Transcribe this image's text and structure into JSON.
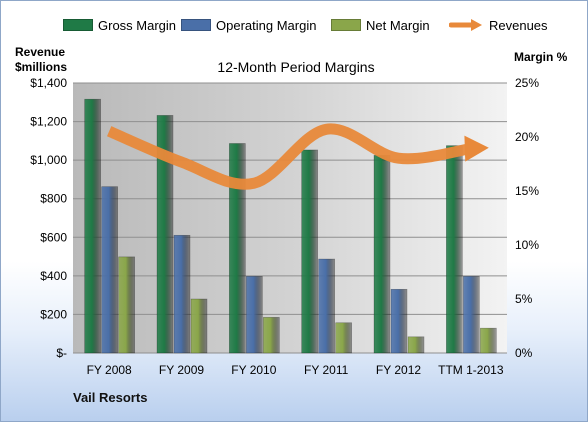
{
  "legend": [
    {
      "label": "Gross Margin",
      "color": "#1f7a46"
    },
    {
      "label": "Operating Margin",
      "color": "#4a6fa8"
    },
    {
      "label": "Net Margin",
      "color": "#8aa64a"
    },
    {
      "label": "Revenues",
      "color": "#e8893a"
    }
  ],
  "left_axis_title": [
    "Revenue",
    "$millions"
  ],
  "right_axis_title": "Margin %",
  "company": "Vail Resorts",
  "chart_data": {
    "type": "bar",
    "title": "12-Month Period Margins",
    "categories": [
      "FY 2008",
      "FY 2009",
      "FY 2010",
      "FY 2011",
      "FY 2012",
      "TTM 1-2013"
    ],
    "left_axis": {
      "ylim": [
        0,
        1400
      ],
      "ticks": [
        "$-",
        "$200",
        "$400",
        "$600",
        "$800",
        "$1,000",
        "$1,200",
        "$1,400"
      ]
    },
    "right_axis": {
      "ylim": [
        0,
        25
      ],
      "ticks": [
        "0%",
        "5%",
        "10%",
        "15%",
        "20%",
        "25%"
      ]
    },
    "series": [
      {
        "name": "Gross Margin",
        "axis": "right",
        "color": "#1f7a46",
        "values": [
          23.5,
          22.0,
          19.4,
          18.8,
          18.3,
          19.2
        ]
      },
      {
        "name": "Operating Margin",
        "axis": "right",
        "color": "#4a6fa8",
        "values": [
          15.4,
          10.9,
          7.1,
          8.7,
          5.9,
          7.1
        ]
      },
      {
        "name": "Net Margin",
        "axis": "right",
        "color": "#8aa64a",
        "values": [
          8.9,
          5.0,
          3.3,
          2.8,
          1.5,
          2.3
        ]
      },
      {
        "name": "Revenues",
        "axis": "left",
        "type": "line",
        "color": "#e8893a",
        "values": [
          1150,
          990,
          880,
          1160,
          1010,
          1060
        ]
      }
    ],
    "grid": true,
    "legend_position": "top"
  }
}
